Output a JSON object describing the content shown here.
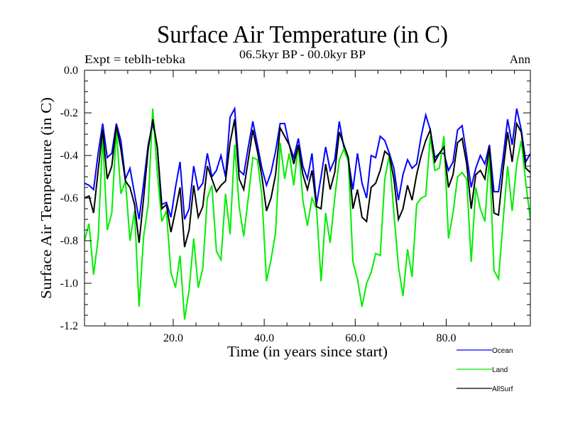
{
  "chart_data": {
    "type": "line",
    "title": "Surface Air Temperature (in C)",
    "subtitle": "06.5kyr BP - 00.0kyr BP",
    "left_annotation": "Expt = teblh-tebka",
    "right_annotation": "Ann",
    "xlabel": "Time (in years since start)",
    "ylabel": "Surface Air Temperature (in C)",
    "xlim": [
      0.5,
      98.5
    ],
    "ylim": [
      -1.2,
      0.0
    ],
    "x_ticks": [
      20,
      40,
      60,
      80
    ],
    "x_tick_labels": [
      "20.0",
      "40.0",
      "60.0",
      "80.0"
    ],
    "x_minor_step": 5,
    "y_ticks": [
      0.0,
      -0.2,
      -0.4,
      -0.6,
      -0.8,
      -1.0,
      -1.2
    ],
    "y_tick_labels": [
      "0.0",
      "-0.2",
      "-0.4",
      "-0.6",
      "-0.8",
      "-1.0",
      "-1.2"
    ],
    "y_minor_step": 0.05,
    "grid": false,
    "legend_position": "bottom-right-below-axes",
    "x_start": 0.5,
    "x_step": 1,
    "series": [
      {
        "name": "Ocean",
        "color": "#0000ff",
        "values": [
          -0.53,
          -0.54,
          -0.56,
          -0.39,
          -0.25,
          -0.41,
          -0.39,
          -0.25,
          -0.33,
          -0.51,
          -0.46,
          -0.58,
          -0.7,
          -0.53,
          -0.35,
          -0.25,
          -0.36,
          -0.63,
          -0.62,
          -0.69,
          -0.55,
          -0.43,
          -0.7,
          -0.65,
          -0.45,
          -0.56,
          -0.53,
          -0.39,
          -0.5,
          -0.47,
          -0.4,
          -0.5,
          -0.22,
          -0.18,
          -0.47,
          -0.49,
          -0.36,
          -0.24,
          -0.35,
          -0.46,
          -0.54,
          -0.48,
          -0.38,
          -0.25,
          -0.25,
          -0.35,
          -0.41,
          -0.32,
          -0.45,
          -0.51,
          -0.39,
          -0.63,
          -0.5,
          -0.36,
          -0.47,
          -0.42,
          -0.24,
          -0.36,
          -0.42,
          -0.56,
          -0.39,
          -0.53,
          -0.6,
          -0.4,
          -0.41,
          -0.31,
          -0.33,
          -0.39,
          -0.46,
          -0.61,
          -0.49,
          -0.42,
          -0.46,
          -0.44,
          -0.31,
          -0.21,
          -0.28,
          -0.41,
          -0.39,
          -0.39,
          -0.47,
          -0.43,
          -0.28,
          -0.26,
          -0.4,
          -0.55,
          -0.46,
          -0.4,
          -0.44,
          -0.35,
          -0.57,
          -0.57,
          -0.41,
          -0.23,
          -0.35,
          -0.18,
          -0.28,
          -0.43,
          -0.39
        ]
      },
      {
        "name": "Land",
        "color": "#00ee00",
        "values": [
          -0.8,
          -0.72,
          -0.96,
          -0.79,
          -0.31,
          -0.75,
          -0.67,
          -0.28,
          -0.58,
          -0.52,
          -0.8,
          -0.66,
          -1.11,
          -0.78,
          -0.63,
          -0.18,
          -0.48,
          -0.71,
          -0.66,
          -0.95,
          -1.02,
          -0.87,
          -1.17,
          -1.03,
          -0.79,
          -1.02,
          -0.93,
          -0.6,
          -0.54,
          -0.85,
          -0.89,
          -0.58,
          -0.77,
          -0.35,
          -0.64,
          -0.78,
          -0.6,
          -0.41,
          -0.42,
          -0.59,
          -0.99,
          -0.89,
          -0.76,
          -0.34,
          -0.51,
          -0.39,
          -0.54,
          -0.35,
          -0.61,
          -0.73,
          -0.6,
          -0.65,
          -0.99,
          -0.67,
          -0.81,
          -0.6,
          -0.42,
          -0.37,
          -0.43,
          -0.9,
          -0.98,
          -1.11,
          -1.0,
          -0.95,
          -0.86,
          -0.87,
          -0.51,
          -0.4,
          -0.67,
          -0.92,
          -1.06,
          -0.84,
          -0.97,
          -0.63,
          -0.6,
          -0.59,
          -0.31,
          -0.47,
          -0.46,
          -0.31,
          -0.79,
          -0.67,
          -0.5,
          -0.48,
          -0.51,
          -0.9,
          -0.55,
          -0.65,
          -0.71,
          -0.4,
          -0.94,
          -0.98,
          -0.71,
          -0.45,
          -0.66,
          -0.44,
          -0.33,
          -0.53,
          -0.7
        ]
      },
      {
        "name": "AllSurf",
        "color": "#000000",
        "values": [
          -0.6,
          -0.59,
          -0.67,
          -0.47,
          -0.28,
          -0.51,
          -0.45,
          -0.26,
          -0.37,
          -0.52,
          -0.55,
          -0.63,
          -0.81,
          -0.6,
          -0.37,
          -0.23,
          -0.36,
          -0.65,
          -0.63,
          -0.76,
          -0.66,
          -0.55,
          -0.83,
          -0.75,
          -0.54,
          -0.69,
          -0.64,
          -0.45,
          -0.51,
          -0.57,
          -0.54,
          -0.52,
          -0.34,
          -0.23,
          -0.51,
          -0.56,
          -0.42,
          -0.28,
          -0.38,
          -0.5,
          -0.66,
          -0.6,
          -0.49,
          -0.27,
          -0.31,
          -0.35,
          -0.44,
          -0.35,
          -0.49,
          -0.56,
          -0.47,
          -0.64,
          -0.65,
          -0.44,
          -0.56,
          -0.48,
          -0.29,
          -0.35,
          -0.41,
          -0.65,
          -0.56,
          -0.69,
          -0.71,
          -0.55,
          -0.53,
          -0.47,
          -0.38,
          -0.4,
          -0.51,
          -0.7,
          -0.65,
          -0.54,
          -0.61,
          -0.49,
          -0.4,
          -0.33,
          -0.28,
          -0.43,
          -0.39,
          -0.36,
          -0.55,
          -0.49,
          -0.34,
          -0.32,
          -0.44,
          -0.65,
          -0.49,
          -0.47,
          -0.51,
          -0.36,
          -0.67,
          -0.68,
          -0.47,
          -0.29,
          -0.43,
          -0.25,
          -0.29,
          -0.46,
          -0.48
        ]
      }
    ]
  }
}
